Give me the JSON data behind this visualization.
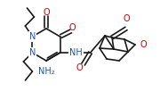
{
  "bg_color": "#ffffff",
  "line_color": "#1a1a1a",
  "line_width": 1.2,
  "font_size": 7.0,
  "figsize": [
    1.8,
    1.12
  ],
  "dpi": 100,
  "xlim": [
    0,
    180
  ],
  "ylim": [
    0,
    112
  ]
}
